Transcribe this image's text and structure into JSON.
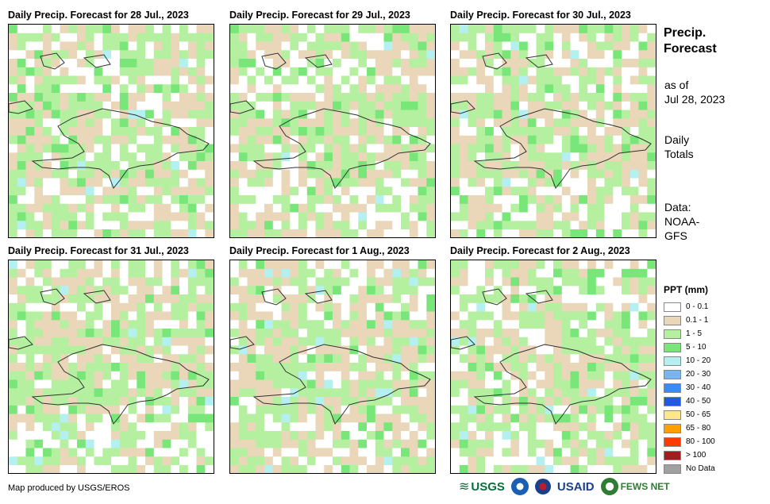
{
  "panels": [
    {
      "title": "Daily Precip. Forecast for 28 Jul., 2023",
      "seed": 11
    },
    {
      "title": "Daily Precip. Forecast for 29 Jul., 2023",
      "seed": 23
    },
    {
      "title": "Daily Precip. Forecast for 30 Jul., 2023",
      "seed": 37
    },
    {
      "title": "Daily Precip. Forecast for 31 Jul., 2023",
      "seed": 41
    },
    {
      "title": "Daily Precip. Forecast for 1 Aug., 2023",
      "seed": 53
    },
    {
      "title": "Daily Precip. Forecast for 2 Aug., 2023",
      "seed": 67
    }
  ],
  "side": {
    "title_line1": "Precip.",
    "title_line2": "Forecast",
    "asof_line1": "as of",
    "asof_line2": "Jul 28, 2023",
    "totals_line1": "Daily",
    "totals_line2": "Totals",
    "data_line1": "Data:",
    "data_line2": "NOAA-",
    "data_line3": "GFS"
  },
  "legend": {
    "title": "PPT (mm)",
    "items": [
      {
        "label": "0 - 0.1",
        "color": "#ffffff"
      },
      {
        "label": "0.1 - 1",
        "color": "#ead6b8"
      },
      {
        "label": "1 - 5",
        "color": "#b4f0a0"
      },
      {
        "label": "5 - 10",
        "color": "#78e678"
      },
      {
        "label": "10 - 20",
        "color": "#b4f0f0"
      },
      {
        "label": "20 - 30",
        "color": "#78b4f0"
      },
      {
        "label": "30 - 40",
        "color": "#3c8cf0"
      },
      {
        "label": "40 - 50",
        "color": "#1e5ae6"
      },
      {
        "label": "50 - 65",
        "color": "#ffe68c"
      },
      {
        "label": "65 - 80",
        "color": "#ffa000"
      },
      {
        "label": "80 - 100",
        "color": "#ff3c00"
      },
      {
        "label": "> 100",
        "color": "#a01e1e"
      },
      {
        "label": "No Data",
        "color": "#a0a0a0"
      }
    ]
  },
  "credit": "Map produced by USGS/EROS",
  "logos": {
    "usgs": "USGS",
    "usaid": "USAID",
    "fewsnet": "FEWS NET"
  }
}
